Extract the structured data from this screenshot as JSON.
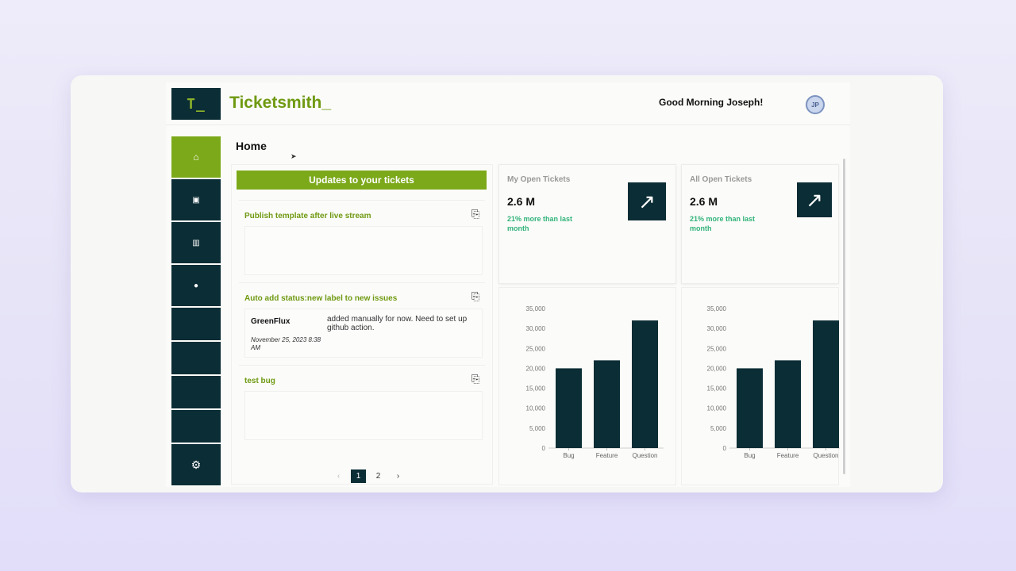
{
  "brand": {
    "logo_text": "T_",
    "name": "Ticketsmith_"
  },
  "header": {
    "greeting": "Good Morning Joseph!",
    "avatar_initials": "JP"
  },
  "sidebar": {
    "items": [
      {
        "icon": "home-icon",
        "glyph": "⌂",
        "active": true
      },
      {
        "icon": "tickets-icon",
        "glyph": "▣"
      },
      {
        "icon": "analytics-icon",
        "glyph": "▥"
      },
      {
        "icon": "user-icon",
        "glyph": "●"
      },
      {
        "icon": "blank"
      },
      {
        "icon": "blank"
      },
      {
        "icon": "blank"
      },
      {
        "icon": "blank"
      },
      {
        "icon": "settings-icon",
        "glyph": "⚙"
      }
    ]
  },
  "page": {
    "title": "Home"
  },
  "updates": {
    "header": "Updates to your tickets",
    "tickets": [
      {
        "title": "Publish template after live stream",
        "comments": []
      },
      {
        "title": "Auto add status:new label to new issues",
        "comments": [
          {
            "author": "GreenFlux",
            "date": "November 25, 2023 8:38 AM",
            "text": "added manually for now. Need to set up github action."
          }
        ]
      },
      {
        "title": "test bug",
        "comments": []
      }
    ],
    "pagination": {
      "prev": "‹",
      "pages": [
        "1",
        "2"
      ],
      "current": "1",
      "next": "›"
    }
  },
  "stats": [
    {
      "label": "My Open Tickets",
      "value": "2.6 M",
      "change": "21% more than last month",
      "icon": "arrow-up-right-icon"
    },
    {
      "label": "All Open Tickets",
      "value": "2.6 M",
      "change": "21% more than last month",
      "icon": "arrow-up-right-icon"
    }
  ],
  "colors": {
    "brand_green": "#7ca91a",
    "dark_teal": "#0b2d35",
    "positive": "#32b37a"
  },
  "chart_data": [
    {
      "type": "bar",
      "categories": [
        "Bug",
        "Feature",
        "Question"
      ],
      "values": [
        20000,
        22000,
        32000
      ],
      "yticks": [
        "0",
        "5,000",
        "10,000",
        "15,000",
        "20,000",
        "25,000",
        "30,000",
        "35,000"
      ],
      "ylim": [
        0,
        35000
      ],
      "grid": false,
      "color": "#0b2d35"
    },
    {
      "type": "bar",
      "categories": [
        "Bug",
        "Feature",
        "Question"
      ],
      "values": [
        20000,
        22000,
        32000
      ],
      "yticks": [
        "0",
        "5,000",
        "10,000",
        "15,000",
        "20,000",
        "25,000",
        "30,000",
        "35,000"
      ],
      "ylim": [
        0,
        35000
      ],
      "grid": false,
      "color": "#0b2d35"
    }
  ]
}
